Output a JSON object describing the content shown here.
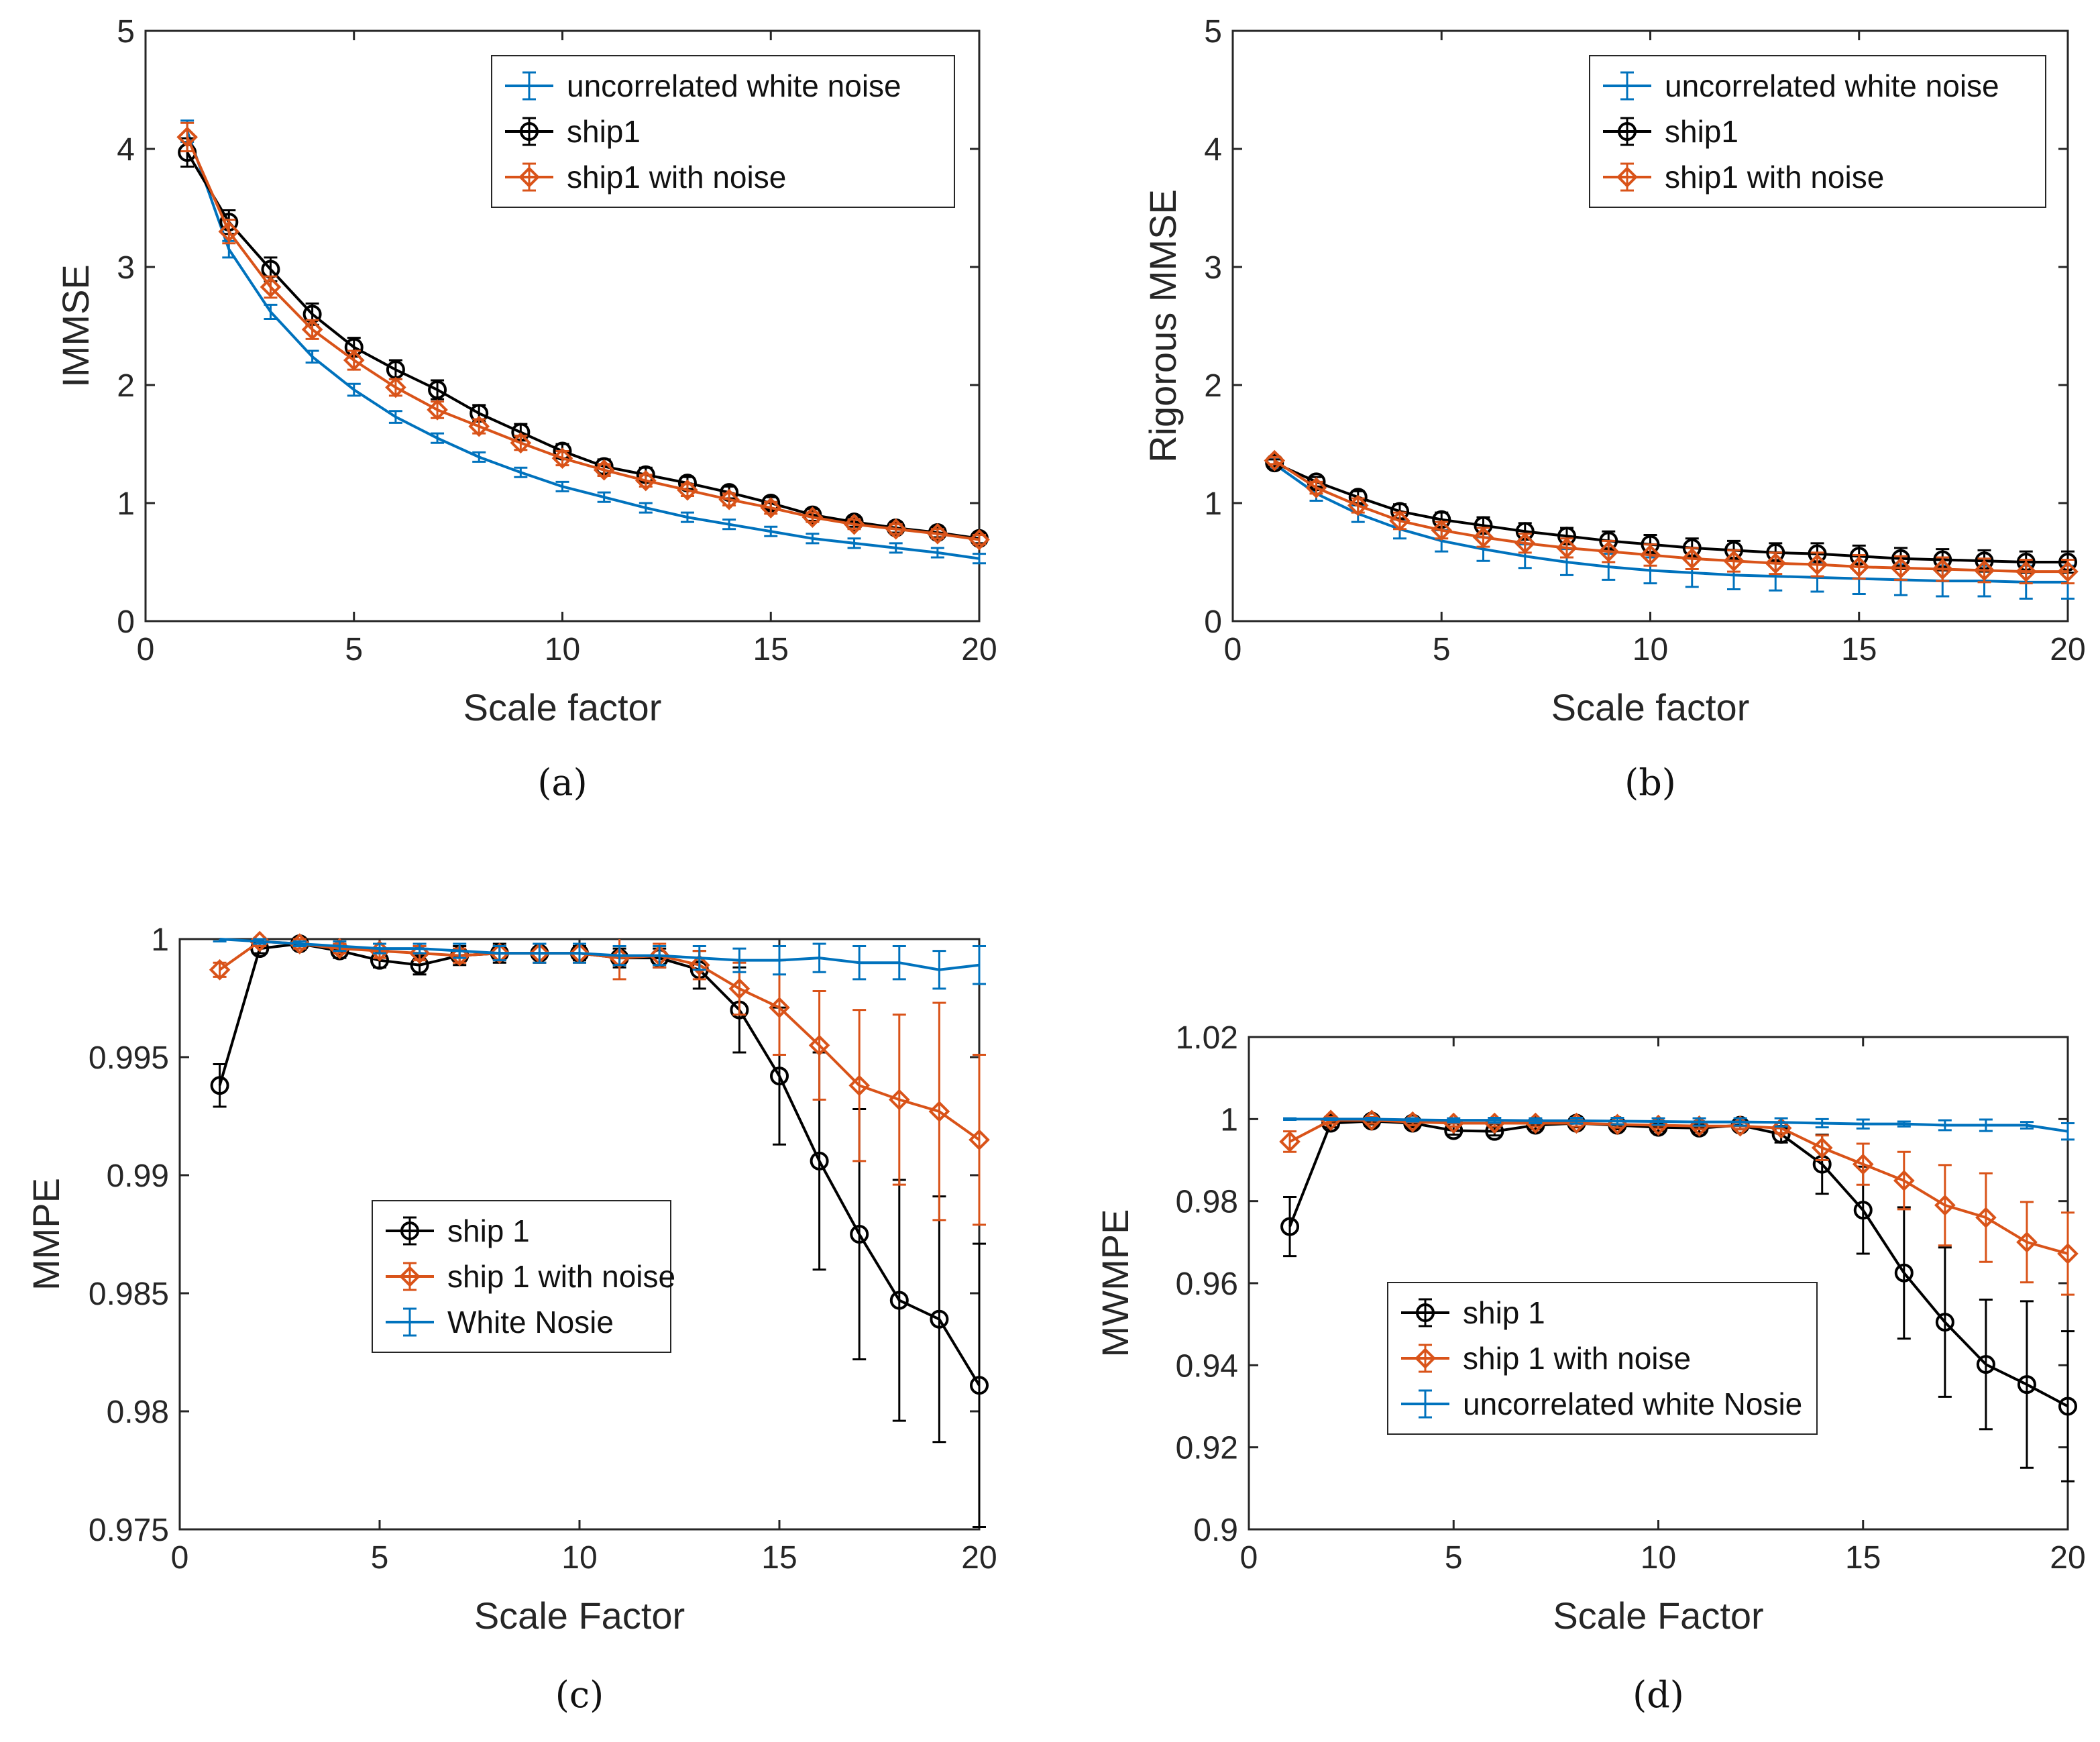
{
  "colors": {
    "blue": "#0072BD",
    "black": "#000000",
    "orange": "#D95319",
    "axis": "#262626"
  },
  "chart_data": [
    {
      "type": "line",
      "panel": "a",
      "caption": "(a)",
      "title": "",
      "xlabel": "Scale factor",
      "ylabel": "IMMSE",
      "xlim": [
        0,
        20
      ],
      "ylim": [
        0,
        5
      ],
      "xticks": [
        0,
        5,
        10,
        15,
        20
      ],
      "xtick_labels": [
        "0",
        "5",
        "10",
        "15",
        "20"
      ],
      "yticks": [
        0,
        1,
        2,
        3,
        4,
        5
      ],
      "ytick_labels": [
        "0",
        "1",
        "2",
        "3",
        "4",
        "5"
      ],
      "legend_position": "top-right",
      "x": [
        1,
        2,
        3,
        4,
        5,
        6,
        7,
        8,
        9,
        10,
        11,
        12,
        13,
        14,
        15,
        16,
        17,
        18,
        19,
        20
      ],
      "series": [
        {
          "name": "uncorrelated white noise",
          "color": "#0072BD",
          "marker": "none",
          "values": [
            4.15,
            3.15,
            2.62,
            2.24,
            1.96,
            1.73,
            1.55,
            1.39,
            1.26,
            1.14,
            1.05,
            0.96,
            0.88,
            0.82,
            0.76,
            0.7,
            0.66,
            0.62,
            0.58,
            0.53
          ],
          "errors": [
            0.09,
            0.07,
            0.06,
            0.05,
            0.05,
            0.05,
            0.04,
            0.04,
            0.04,
            0.04,
            0.04,
            0.04,
            0.04,
            0.04,
            0.04,
            0.04,
            0.04,
            0.04,
            0.04,
            0.04
          ]
        },
        {
          "name": "ship1",
          "color": "#000000",
          "marker": "circle",
          "values": [
            3.97,
            3.38,
            2.98,
            2.6,
            2.32,
            2.13,
            1.96,
            1.76,
            1.6,
            1.44,
            1.31,
            1.24,
            1.17,
            1.09,
            1.0,
            0.9,
            0.84,
            0.79,
            0.75,
            0.7
          ],
          "errors": [
            0.12,
            0.1,
            0.1,
            0.09,
            0.08,
            0.08,
            0.08,
            0.07,
            0.07,
            0.06,
            0.06,
            0.06,
            0.05,
            0.05,
            0.05,
            0.05,
            0.04,
            0.04,
            0.04,
            0.04
          ]
        },
        {
          "name": "ship1 with noise",
          "color": "#D95319",
          "marker": "diamond",
          "values": [
            4.1,
            3.3,
            2.83,
            2.47,
            2.21,
            1.98,
            1.79,
            1.65,
            1.51,
            1.38,
            1.28,
            1.19,
            1.11,
            1.03,
            0.96,
            0.88,
            0.82,
            0.78,
            0.74,
            0.69
          ],
          "errors": [
            0.12,
            0.1,
            0.09,
            0.08,
            0.08,
            0.07,
            0.07,
            0.06,
            0.06,
            0.06,
            0.05,
            0.05,
            0.05,
            0.05,
            0.05,
            0.04,
            0.04,
            0.04,
            0.04,
            0.04
          ]
        }
      ]
    },
    {
      "type": "line",
      "panel": "b",
      "caption": "(b)",
      "title": "",
      "xlabel": "Scale factor",
      "ylabel": "Rigorous MMSE",
      "xlim": [
        0,
        20
      ],
      "ylim": [
        0,
        5
      ],
      "xticks": [
        0,
        5,
        10,
        15,
        20
      ],
      "xtick_labels": [
        "0",
        "5",
        "10",
        "15",
        "20"
      ],
      "yticks": [
        0,
        1,
        2,
        3,
        4,
        5
      ],
      "ytick_labels": [
        "0",
        "1",
        "2",
        "3",
        "4",
        "5"
      ],
      "legend_position": "top-right",
      "x": [
        1,
        2,
        3,
        4,
        5,
        6,
        7,
        8,
        9,
        10,
        11,
        12,
        13,
        14,
        15,
        16,
        17,
        18,
        19,
        20
      ],
      "series": [
        {
          "name": "uncorrelated white noise",
          "color": "#0072BD",
          "marker": "none",
          "values": [
            1.33,
            1.08,
            0.91,
            0.78,
            0.68,
            0.61,
            0.55,
            0.5,
            0.46,
            0.43,
            0.41,
            0.39,
            0.38,
            0.37,
            0.36,
            0.35,
            0.34,
            0.34,
            0.33,
            0.33
          ],
          "errors": [
            0.04,
            0.06,
            0.07,
            0.08,
            0.09,
            0.1,
            0.1,
            0.11,
            0.11,
            0.11,
            0.12,
            0.12,
            0.12,
            0.12,
            0.13,
            0.13,
            0.13,
            0.13,
            0.14,
            0.14
          ]
        },
        {
          "name": "ship1",
          "color": "#000000",
          "marker": "circle",
          "values": [
            1.34,
            1.18,
            1.05,
            0.93,
            0.86,
            0.81,
            0.76,
            0.72,
            0.68,
            0.65,
            0.62,
            0.6,
            0.58,
            0.57,
            0.55,
            0.53,
            0.52,
            0.51,
            0.5,
            0.5
          ],
          "errors": [
            0.03,
            0.04,
            0.05,
            0.06,
            0.06,
            0.07,
            0.07,
            0.07,
            0.08,
            0.08,
            0.08,
            0.08,
            0.08,
            0.09,
            0.09,
            0.09,
            0.09,
            0.09,
            0.09,
            0.09
          ]
        },
        {
          "name": "ship1 with noise",
          "color": "#D95319",
          "marker": "diamond",
          "values": [
            1.36,
            1.13,
            0.98,
            0.85,
            0.77,
            0.71,
            0.66,
            0.62,
            0.59,
            0.56,
            0.53,
            0.51,
            0.49,
            0.48,
            0.46,
            0.45,
            0.44,
            0.43,
            0.42,
            0.42
          ],
          "errors": [
            0.03,
            0.05,
            0.06,
            0.07,
            0.07,
            0.08,
            0.08,
            0.08,
            0.09,
            0.09,
            0.09,
            0.09,
            0.09,
            0.1,
            0.1,
            0.1,
            0.1,
            0.1,
            0.1,
            0.1
          ]
        }
      ]
    },
    {
      "type": "line",
      "panel": "c",
      "caption": "(c)",
      "title": "",
      "xlabel": "Scale Factor",
      "ylabel": "MMPE",
      "xlim": [
        0,
        20
      ],
      "ylim": [
        0.975,
        1.0
      ],
      "xticks": [
        0,
        5,
        10,
        15,
        20
      ],
      "xtick_labels": [
        "0",
        "5",
        "10",
        "15",
        "20"
      ],
      "yticks": [
        0.975,
        0.98,
        0.985,
        0.99,
        0.995,
        1.0
      ],
      "ytick_labels": [
        "0.975",
        "0.98",
        "0.985",
        "0.99",
        "0.995",
        "1"
      ],
      "legend_position": "center-left",
      "x": [
        1,
        2,
        3,
        4,
        5,
        6,
        7,
        8,
        9,
        10,
        11,
        12,
        13,
        14,
        15,
        16,
        17,
        18,
        19,
        20
      ],
      "series": [
        {
          "name": "ship 1",
          "color": "#000000",
          "marker": "circle",
          "values": [
            0.9938,
            0.9996,
            0.9998,
            0.9995,
            0.9991,
            0.9989,
            0.9993,
            0.9994,
            0.9994,
            0.9994,
            0.9992,
            0.9992,
            0.9987,
            0.997,
            0.9942,
            0.9906,
            0.9875,
            0.9847,
            0.9839,
            0.9811
          ],
          "errors": [
            0.0009,
            0.0002,
            0.0002,
            0.0003,
            0.0003,
            0.0004,
            0.0004,
            0.0004,
            0.0004,
            0.0003,
            0.0004,
            0.0004,
            0.0008,
            0.0018,
            0.0029,
            0.0046,
            0.0053,
            0.0051,
            0.0052,
            0.006
          ]
        },
        {
          "name": "ship 1 with noise",
          "color": "#D95319",
          "marker": "diamond",
          "values": [
            0.9987,
            0.9999,
            0.9998,
            0.9996,
            0.9995,
            0.9994,
            0.9993,
            0.9994,
            0.9994,
            0.9994,
            0.9992,
            0.9993,
            0.9989,
            0.9979,
            0.9971,
            0.9955,
            0.9938,
            0.9932,
            0.9927,
            0.9915
          ],
          "errors": [
            0.0003,
            0.0002,
            0.0002,
            0.0002,
            0.0003,
            0.0003,
            0.0003,
            0.0003,
            0.0004,
            0.0004,
            0.0009,
            0.0005,
            0.0006,
            0.0011,
            0.002,
            0.0023,
            0.0032,
            0.0036,
            0.0046,
            0.0036
          ]
        },
        {
          "name": "White Nosie",
          "color": "#0072BD",
          "marker": "none",
          "values": [
            1.0,
            0.9999,
            0.9998,
            0.9997,
            0.9996,
            0.9996,
            0.9995,
            0.9994,
            0.9994,
            0.9994,
            0.9993,
            0.9993,
            0.9992,
            0.9991,
            0.9991,
            0.9992,
            0.999,
            0.999,
            0.9987,
            0.9989
          ],
          "errors": [
            0.0001,
            0.0001,
            0.0001,
            0.0002,
            0.0002,
            0.0002,
            0.0003,
            0.0003,
            0.0004,
            0.0004,
            0.0004,
            0.0004,
            0.0005,
            0.0005,
            0.0006,
            0.0006,
            0.0007,
            0.0007,
            0.0008,
            0.0008
          ]
        }
      ]
    },
    {
      "type": "line",
      "panel": "d",
      "caption": "(d)",
      "title": "",
      "xlabel": "Scale Factor",
      "ylabel": "MWMPE",
      "xlim": [
        0,
        20
      ],
      "ylim": [
        0.9,
        1.02
      ],
      "xticks": [
        0,
        5,
        10,
        15,
        20
      ],
      "xtick_labels": [
        "0",
        "5",
        "10",
        "15",
        "20"
      ],
      "yticks": [
        0.9,
        0.92,
        0.94,
        0.96,
        0.98,
        1.0,
        1.02
      ],
      "ytick_labels": [
        "0.9",
        "0.92",
        "0.94",
        "0.96",
        "0.98",
        "1",
        "1.02"
      ],
      "legend_position": "bottom-left",
      "x": [
        1,
        2,
        3,
        4,
        5,
        6,
        7,
        8,
        9,
        10,
        11,
        12,
        13,
        14,
        15,
        16,
        17,
        18,
        19,
        20
      ],
      "series": [
        {
          "name": "ship 1",
          "color": "#000000",
          "marker": "circle",
          "values": [
            0.9738,
            0.999,
            0.9995,
            0.999,
            0.9972,
            0.997,
            0.9985,
            0.999,
            0.9985,
            0.998,
            0.9978,
            0.9985,
            0.9963,
            0.989,
            0.9778,
            0.9625,
            0.9505,
            0.9402,
            0.9353,
            0.93
          ],
          "errors": [
            0.0072,
            0.001,
            0.0008,
            0.001,
            0.001,
            0.001,
            0.001,
            0.001,
            0.001,
            0.001,
            0.001,
            0.001,
            0.002,
            0.0072,
            0.0106,
            0.016,
            0.0182,
            0.0158,
            0.0203,
            0.0183
          ]
        },
        {
          "name": "ship 1 with noise",
          "color": "#D95319",
          "marker": "diamond",
          "values": [
            0.9945,
            0.9997,
            0.9997,
            0.9993,
            0.999,
            0.999,
            0.999,
            0.999,
            0.9987,
            0.9985,
            0.9983,
            0.9983,
            0.9978,
            0.993,
            0.989,
            0.985,
            0.979,
            0.976,
            0.97,
            0.9672
          ],
          "errors": [
            0.0025,
            0.0008,
            0.0008,
            0.0008,
            0.0008,
            0.0008,
            0.0008,
            0.0008,
            0.0008,
            0.0008,
            0.0008,
            0.0008,
            0.0012,
            0.003,
            0.005,
            0.007,
            0.0098,
            0.0108,
            0.0098,
            0.01
          ]
        },
        {
          "name": "uncorrelated white Nosie",
          "color": "#0072BD",
          "marker": "none",
          "values": [
            1.0,
            1.0,
            1.0,
            0.9998,
            0.9997,
            0.9997,
            0.9996,
            0.9996,
            0.9995,
            0.9994,
            0.9993,
            0.9993,
            0.9992,
            0.999,
            0.9988,
            0.9988,
            0.9985,
            0.9985,
            0.9985,
            0.997
          ],
          "errors": [
            0.0002,
            0.0002,
            0.0003,
            0.0004,
            0.0005,
            0.0006,
            0.0006,
            0.0007,
            0.0008,
            0.0008,
            0.0009,
            0.0009,
            0.001,
            0.001,
            0.0011,
            0.0006,
            0.0012,
            0.0014,
            0.0008,
            0.002
          ]
        }
      ]
    }
  ]
}
